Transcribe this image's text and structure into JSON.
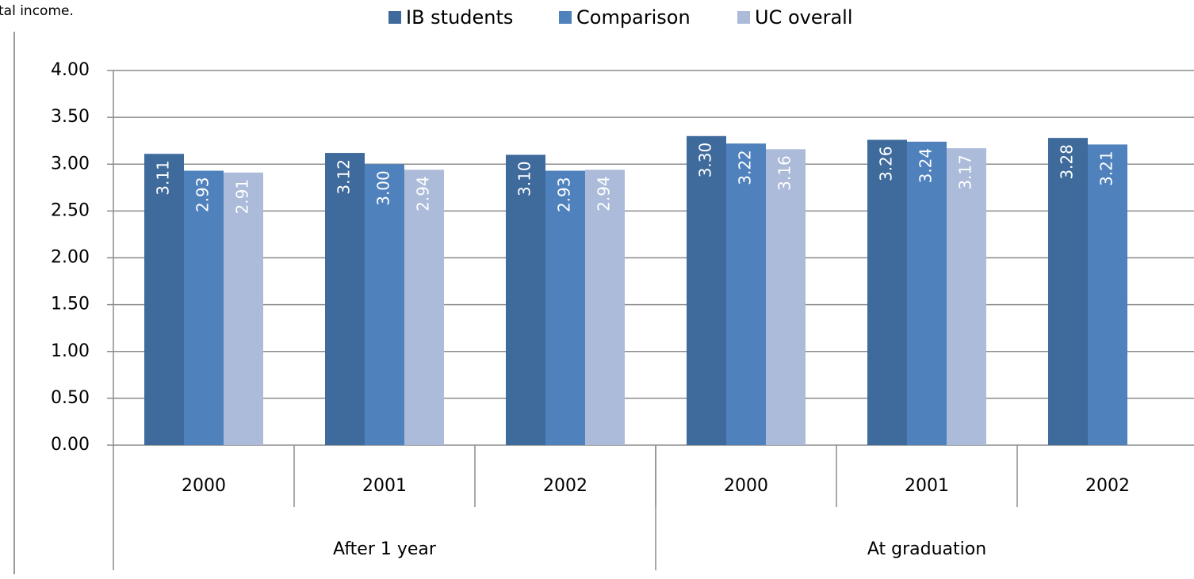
{
  "chart_data": {
    "type": "bar",
    "annotation": "tal income.",
    "categories": [
      "2000",
      "2001",
      "2002",
      "2000",
      "2001",
      "2002"
    ],
    "groups": [
      {
        "label": "After 1 year",
        "size": 3
      },
      {
        "label": "At graduation",
        "size": 3
      }
    ],
    "series": [
      {
        "name": "IB students",
        "color": "#3e6a9c",
        "values": [
          3.11,
          3.12,
          3.1,
          3.3,
          3.26,
          3.28
        ],
        "value_labels": [
          "3.11",
          "3.12",
          "3.10",
          "3.30",
          "3.26",
          "3.28"
        ]
      },
      {
        "name": "Comparison",
        "color": "#4f81bd",
        "values": [
          2.93,
          3.0,
          2.93,
          3.22,
          3.24,
          3.21
        ],
        "value_labels": [
          "2.93",
          "3.00",
          "2.93",
          "3.22",
          "3.24",
          "3.21"
        ]
      },
      {
        "name": "UC overall",
        "color": "#abbbd9",
        "values": [
          2.91,
          2.94,
          2.94,
          3.16,
          3.17,
          null
        ],
        "value_labels": [
          "2.91",
          "2.94",
          "2.94",
          "3.16",
          "3.17",
          null
        ]
      }
    ],
    "ylim": [
      0,
      4
    ],
    "yticks": [
      {
        "value": 0,
        "label": "0.00"
      },
      {
        "value": 0.5,
        "label": "0.50"
      },
      {
        "value": 1,
        "label": "1.00"
      },
      {
        "value": 1.5,
        "label": "1.50"
      },
      {
        "value": 2,
        "label": "2.00"
      },
      {
        "value": 2.5,
        "label": "2.50"
      },
      {
        "value": 3,
        "label": "3.00"
      },
      {
        "value": 3.5,
        "label": "3.50"
      },
      {
        "value": 4,
        "label": "4.00"
      }
    ],
    "grid": true
  }
}
